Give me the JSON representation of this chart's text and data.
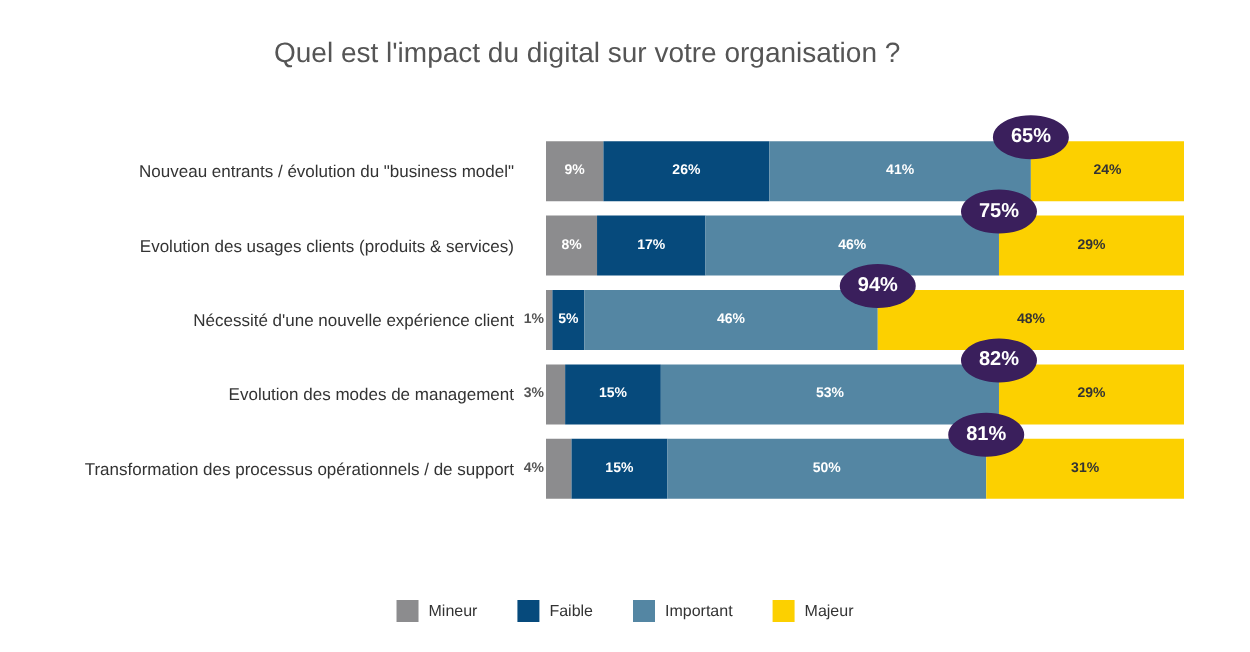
{
  "chart_data": {
    "type": "bar",
    "orientation": "horizontal",
    "stacked": true,
    "title": "Quel est l'impact du digital sur votre organisation ?",
    "categories": [
      "Nouveau entrants / évolution du \"business model\"",
      "Evolution des usages clients (produits & services)",
      "Nécessité d'une nouvelle expérience client",
      "Evolution des modes de management",
      "Transformation des processus opérationnels / de support"
    ],
    "series": [
      {
        "name": "Mineur",
        "color": "#8c8c8e",
        "values": [
          9,
          8,
          1,
          3,
          4
        ],
        "value_labels": [
          "9%",
          "8%",
          "1%",
          "3%",
          "4%"
        ]
      },
      {
        "name": "Faible",
        "color": "#064a7c",
        "values": [
          26,
          17,
          5,
          15,
          15
        ],
        "value_labels": [
          "26%",
          "17%",
          "5%",
          "15%",
          "15%"
        ]
      },
      {
        "name": "Important",
        "color": "#5486a3",
        "values": [
          41,
          46,
          46,
          53,
          50
        ],
        "value_labels": [
          "41%",
          "46%",
          "46%",
          "53%",
          "50%"
        ]
      },
      {
        "name": "Majeur",
        "color": "#fcd000",
        "values": [
          24,
          29,
          48,
          29,
          31
        ],
        "value_labels": [
          "24%",
          "29%",
          "48%",
          "29%",
          "31%"
        ]
      }
    ],
    "annotations": [
      {
        "text": "65%",
        "x": 76,
        "y": "Nouveau entrants / évolution du \"business model\""
      },
      {
        "text": "75%",
        "x": 71,
        "y": "Evolution des usages clients (produits & services)"
      },
      {
        "text": "94%",
        "x": 52,
        "y": "Nécessité d'une nouvelle expérience client"
      },
      {
        "text": "82%",
        "x": 71,
        "y": "Evolution des modes de management"
      },
      {
        "text": "81%",
        "x": 69,
        "y": "Transformation des processus opérationnels / de support"
      }
    ],
    "xlim": [
      0,
      100
    ],
    "tick_labels": "y",
    "legend": "bottom"
  }
}
